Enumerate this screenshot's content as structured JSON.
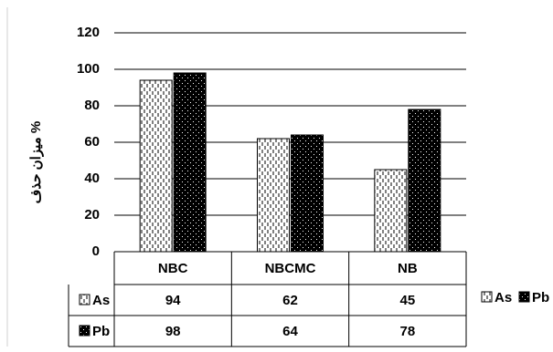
{
  "chart_data": {
    "type": "bar",
    "ylabel": "میزان حذف %",
    "ylim": [
      0,
      120
    ],
    "yticks": [
      0,
      20,
      40,
      60,
      80,
      100,
      120
    ],
    "categories": [
      "NBC",
      "NBCMC",
      "NB"
    ],
    "series": [
      {
        "name": "As",
        "values": [
          94,
          62,
          45
        ],
        "pattern": "vertical-dashes",
        "color": "#000000"
      },
      {
        "name": "Pb",
        "values": [
          98,
          64,
          78
        ],
        "pattern": "dots-on-black",
        "color": "#000000"
      }
    ],
    "data_table": true,
    "legend_position": "right",
    "grid": true
  }
}
